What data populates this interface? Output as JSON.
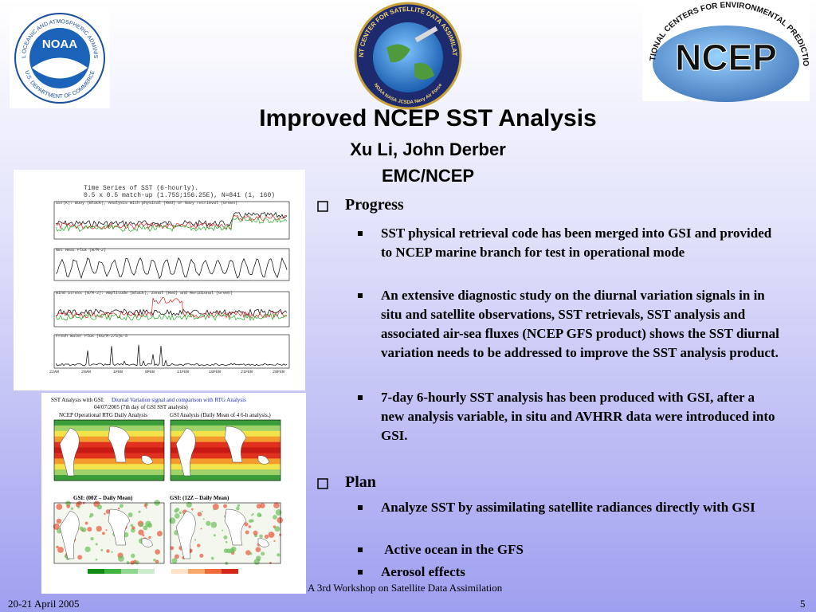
{
  "header": {
    "logos": {
      "noaa": {
        "name": "NOAA",
        "ring_top": "NATIONAL OCEANIC AND ATMOSPHERIC ADMINISTRATION",
        "ring_bottom": "U.S. DEPARTMENT OF COMMERCE"
      },
      "jcsda": {
        "ring_top": "JOINT CENTER FOR SATELLITE DATA ASSIMILATION",
        "ring_bottom": "NOAA NASA JCSDA Navy Air Force"
      },
      "ncep": {
        "name": "NCEP",
        "ring_top": "NATIONAL CENTERS FOR ENVIRONMENTAL PREDICTION"
      }
    },
    "title": "Improved NCEP SST Analysis",
    "authors": "Xu Li, John Derber",
    "affiliation": "EMC/NCEP"
  },
  "figures": {
    "time_series": {
      "title": "Time Series of SST (6-hourly).",
      "subtitle": "0.5 x 0.5 match-up (1.75S;156.25E), N=841 (1, 160)",
      "panels": [
        "SST(K): Buoy (Black), Analysis with physical (Red) or Navy retrieval (Green)",
        "Net Heat Flux (W/M-2)",
        "Wind Stress (N/M-2): Amplitude (Black), Zonal (Red) and Meridional (Green)",
        "Fresh Water Flux (KG/M-2/S)E-5"
      ],
      "dates": [
        "22AN",
        "28AN",
        "1FEB",
        "8FEB",
        "11FEB",
        "18FEB",
        "21FEB",
        "28FEB"
      ]
    },
    "maps": {
      "title": "SST Analysis with GSI:",
      "title_highlight": "Diurnal Variation signal and comparison with RTG Analysis",
      "date": "04/07/2005 (7th day of GSI SST analysis)",
      "panels": [
        "NCEP Operational RTG Daily Analysis",
        "GSI Analysis (Daily Mean of 4 6-h analysis.)",
        "GSI: (00Z – Daily Mean)",
        "GSI: (12Z – Daily Mean)"
      ]
    }
  },
  "sections": [
    {
      "heading": "Progress",
      "items": [
        "SST physical retrieval code has been merged into GSI and provided to NCEP marine branch for test in operational mode",
        "An extensive diagnostic study on the diurnal variation signals in in situ and satellite observations, SST retrievals, SST analysis and associated air-sea fluxes (NCEP GFS product) shows the SST diurnal variation needs to be addressed to improve the SST analysis product.",
        "7-day 6-hourly SST analysis has been produced with GSI, after a new analysis variable, in situ and AVHRR data were introduced into GSI."
      ]
    },
    {
      "heading": "Plan",
      "items": [
        "Analyze SST by assimilating satellite radiances directly with GSI",
        " Active ocean in the GFS",
        "Aerosol effects"
      ]
    }
  ],
  "footer": {
    "date": "20-21 April 2005",
    "event": "A 3rd Workshop on Satellite Data Assimilation",
    "page": "5"
  }
}
